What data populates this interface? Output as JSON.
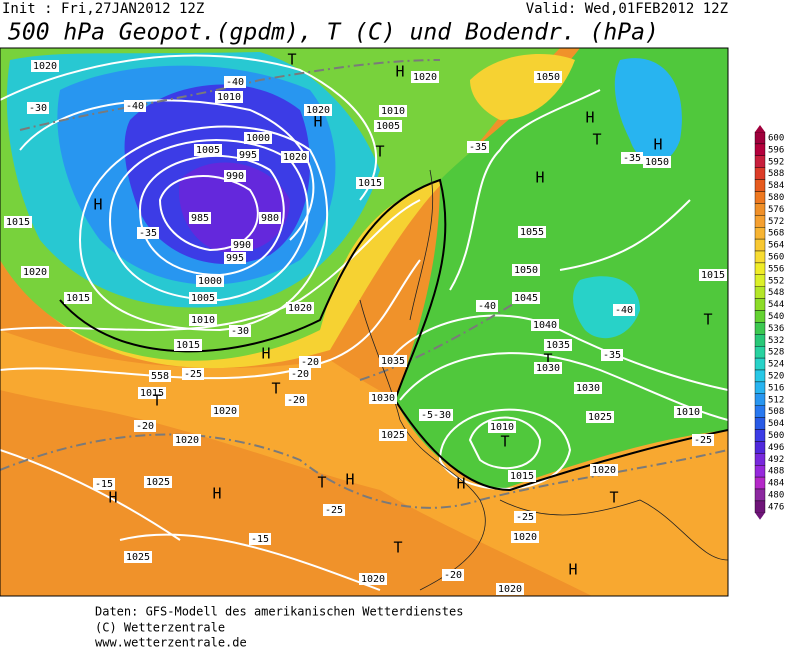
{
  "header": {
    "init": "Init : Fri,27JAN2012 12Z",
    "valid": "Valid: Wed,01FEB2012 12Z",
    "title": "500 hPa Geopot.(gpdm), T (C) und Bodendr. (hPa)"
  },
  "map": {
    "labels": [
      "1020",
      "-30",
      "H",
      "1015",
      "-35",
      "1020",
      "1015",
      "1005",
      "995",
      "990",
      "985",
      "980",
      "990",
      "995",
      "1000",
      "1005",
      "1010",
      "1015",
      "-40",
      "-40",
      "1010",
      "1000",
      "1020",
      "H",
      "1020",
      "T",
      "H",
      "1020",
      "1010",
      "1005",
      "T",
      "-35",
      "1015",
      "1050",
      "H",
      "T",
      "H",
      "1050",
      "-35",
      "H",
      "1055",
      "1050",
      "1045",
      "-40",
      "1040",
      "-40",
      "1035",
      "T",
      "1030",
      "-35",
      "1030",
      "T",
      "1015",
      "1010",
      "1025",
      "-25",
      "1020",
      "T",
      "1010",
      "T",
      "1015",
      "H",
      "1035",
      "1030",
      "1025",
      "-5-30",
      "558",
      "-25",
      "-30",
      "H",
      "-20",
      "T",
      "-20",
      "-20",
      "1015",
      "T",
      "-20",
      "1020",
      "1020",
      "1025",
      "H",
      "H",
      "-15",
      "T",
      "H",
      "-25",
      "-15",
      "1025",
      "T",
      "1020",
      "-20",
      "1020",
      "-25",
      "H",
      "1020",
      "1020"
    ]
  },
  "colorbar": {
    "labels": [
      600,
      596,
      592,
      588,
      584,
      580,
      576,
      572,
      568,
      564,
      560,
      556,
      552,
      548,
      544,
      540,
      536,
      532,
      528,
      524,
      520,
      516,
      512,
      508,
      504,
      500,
      496,
      492,
      488,
      484,
      480,
      476
    ],
    "colors": [
      "#a0003c",
      "#b4003c",
      "#c81e3c",
      "#dc3c28",
      "#e65a1e",
      "#ee7820",
      "#f09028",
      "#f5a030",
      "#f7b432",
      "#f8c832",
      "#f8dc32",
      "#f0ec28",
      "#dcf028",
      "#b4e628",
      "#8cdc28",
      "#64d232",
      "#3cc850",
      "#28c878",
      "#28d2a0",
      "#28d2c8",
      "#28c8e6",
      "#28b4f0",
      "#2896f0",
      "#2878f0",
      "#285ae6",
      "#3c3ce6",
      "#5028dc",
      "#7828dc",
      "#9628dc",
      "#b428c8",
      "#8c28a0",
      "#6e1478"
    ]
  },
  "footer": [
    "Daten: GFS-Modell des amerikanischen Wetterdienstes",
    "(C) Wetterzentrale",
    "www.wetterzentrale.de"
  ]
}
